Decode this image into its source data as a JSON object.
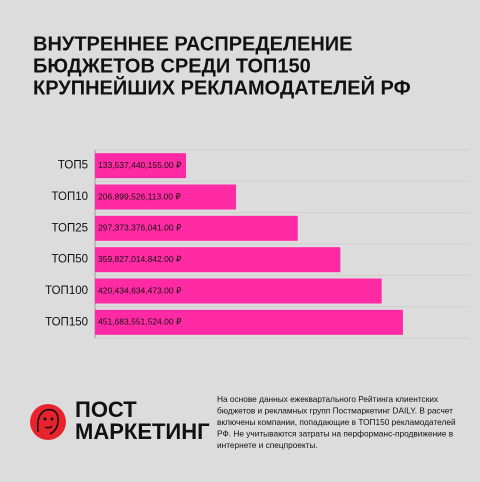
{
  "chart_data": {
    "type": "hbar",
    "title": [
      "ВНУТРЕННЕЕ РАСПРЕДЕЛЕНИЕ",
      "БЮДЖЕТОВ СРЕДИ ТОП150",
      "КРУПНЕЙШИХ РЕКЛАМОДАТЕЛЕЙ РФ"
    ],
    "categories": [
      "ТОП5",
      "ТОП10",
      "ТОП25",
      "ТОП50",
      "ТОП100",
      "ТОП150"
    ],
    "values": [
      133537440155.0,
      206899526113.0,
      297373376041.0,
      359827014842.0,
      420434634473.0,
      451683551524.0
    ],
    "value_labels": [
      "133,537,440,155.00 ₽",
      "206,899,526,113.00 ₽",
      "297,373,376,041.00 ₽",
      "359,827,014,842.00 ₽",
      "420,434,634,473.00 ₽",
      "451,683,551,524.00 ₽"
    ],
    "color": "#ff2aa4",
    "xlim": [
      0,
      550000000000
    ]
  },
  "logo": {
    "lines": [
      "ПОСТ",
      "МАРКЕТИНГ"
    ]
  },
  "footnote": {
    "lines": [
      "На основе данных ежеквартального Рейтинга клиентских",
      "бюджетов и рекламных групп Постмаркетинг DAILY. В расчет",
      "включены компании, попадающие в ТОП150 рекламодателей",
      "РФ. Не учитываются затраты на перформанс-продвижение в",
      "интернете и спецпроекты."
    ]
  }
}
